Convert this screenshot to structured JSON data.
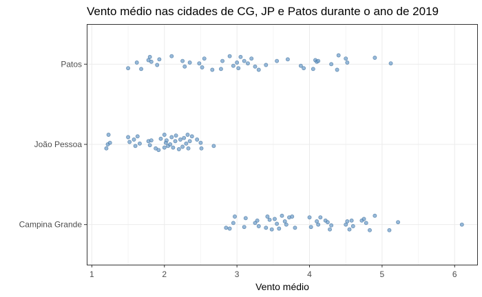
{
  "chart_data": {
    "type": "scatter",
    "title": "Vento médio nas cidades de CG, JP e Patos durante o ano de 2019",
    "xlabel": "Vento médio",
    "ylabel": "",
    "xlim": [
      0.93,
      6.32
    ],
    "x_ticks": [
      1,
      2,
      3,
      4,
      5,
      6
    ],
    "categories": [
      "Campina Grande",
      "João Pessoa",
      "Patos"
    ],
    "grid": true,
    "point_color": "#6f9ecb",
    "series": [
      {
        "category": "Patos",
        "points": [
          {
            "x": 1.5,
            "j": -0.05
          },
          {
            "x": 1.62,
            "j": 0.02
          },
          {
            "x": 1.68,
            "j": -0.06
          },
          {
            "x": 1.78,
            "j": 0.05
          },
          {
            "x": 1.8,
            "j": 0.09
          },
          {
            "x": 1.82,
            "j": 0.03
          },
          {
            "x": 1.9,
            "j": -0.01
          },
          {
            "x": 1.93,
            "j": 0.06
          },
          {
            "x": 2.1,
            "j": 0.1
          },
          {
            "x": 2.25,
            "j": 0.04
          },
          {
            "x": 2.28,
            "j": -0.03
          },
          {
            "x": 2.35,
            "j": 0.02
          },
          {
            "x": 2.48,
            "j": 0.01
          },
          {
            "x": 2.52,
            "j": -0.04
          },
          {
            "x": 2.55,
            "j": 0.07
          },
          {
            "x": 2.66,
            "j": -0.07
          },
          {
            "x": 2.78,
            "j": -0.06
          },
          {
            "x": 2.8,
            "j": 0.04
          },
          {
            "x": 2.9,
            "j": 0.1
          },
          {
            "x": 2.95,
            "j": -0.02
          },
          {
            "x": 3.0,
            "j": 0.02
          },
          {
            "x": 3.02,
            "j": -0.05
          },
          {
            "x": 3.05,
            "j": 0.09
          },
          {
            "x": 3.1,
            "j": 0.04
          },
          {
            "x": 3.15,
            "j": 0.01
          },
          {
            "x": 3.2,
            "j": 0.07
          },
          {
            "x": 3.25,
            "j": -0.03
          },
          {
            "x": 3.3,
            "j": -0.07
          },
          {
            "x": 3.4,
            "j": -0.01
          },
          {
            "x": 3.55,
            "j": 0.04
          },
          {
            "x": 3.7,
            "j": 0.06
          },
          {
            "x": 3.88,
            "j": -0.02
          },
          {
            "x": 3.92,
            "j": -0.05
          },
          {
            "x": 4.05,
            "j": -0.06
          },
          {
            "x": 4.08,
            "j": 0.05
          },
          {
            "x": 4.1,
            "j": 0.03
          },
          {
            "x": 4.12,
            "j": 0.04
          },
          {
            "x": 4.3,
            "j": 0.0
          },
          {
            "x": 4.38,
            "j": -0.07
          },
          {
            "x": 4.4,
            "j": 0.11
          },
          {
            "x": 4.5,
            "j": 0.07
          },
          {
            "x": 4.52,
            "j": 0.02
          },
          {
            "x": 4.9,
            "j": 0.08
          },
          {
            "x": 5.12,
            "j": 0.01
          }
        ]
      },
      {
        "category": "João Pessoa",
        "points": [
          {
            "x": 1.2,
            "j": -0.05
          },
          {
            "x": 1.22,
            "j": 0.0
          },
          {
            "x": 1.23,
            "j": 0.12
          },
          {
            "x": 1.25,
            "j": 0.02
          },
          {
            "x": 1.5,
            "j": 0.09
          },
          {
            "x": 1.52,
            "j": 0.03
          },
          {
            "x": 1.58,
            "j": 0.06
          },
          {
            "x": 1.6,
            "j": -0.02
          },
          {
            "x": 1.63,
            "j": 0.1
          },
          {
            "x": 1.66,
            "j": 0.01
          },
          {
            "x": 1.78,
            "j": 0.04
          },
          {
            "x": 1.8,
            "j": -0.01
          },
          {
            "x": 1.82,
            "j": 0.05
          },
          {
            "x": 1.88,
            "j": -0.05
          },
          {
            "x": 1.92,
            "j": -0.07
          },
          {
            "x": 1.95,
            "j": 0.07
          },
          {
            "x": 2.0,
            "j": 0.12
          },
          {
            "x": 2.0,
            "j": -0.04
          },
          {
            "x": 2.02,
            "j": 0.02
          },
          {
            "x": 2.03,
            "j": 0.05
          },
          {
            "x": 2.05,
            "j": -0.02
          },
          {
            "x": 2.08,
            "j": 0.0
          },
          {
            "x": 2.1,
            "j": 0.09
          },
          {
            "x": 2.12,
            "j": -0.04
          },
          {
            "x": 2.15,
            "j": 0.04
          },
          {
            "x": 2.16,
            "j": 0.11
          },
          {
            "x": 2.2,
            "j": -0.06
          },
          {
            "x": 2.22,
            "j": 0.06
          },
          {
            "x": 2.25,
            "j": -0.03
          },
          {
            "x": 2.27,
            "j": 0.08
          },
          {
            "x": 2.3,
            "j": 0.01
          },
          {
            "x": 2.32,
            "j": 0.12
          },
          {
            "x": 2.33,
            "j": -0.05
          },
          {
            "x": 2.35,
            "j": 0.04
          },
          {
            "x": 2.38,
            "j": 0.1
          },
          {
            "x": 2.45,
            "j": 0.06
          },
          {
            "x": 2.5,
            "j": 0.02
          },
          {
            "x": 2.51,
            "j": -0.05
          },
          {
            "x": 2.68,
            "j": -0.02
          }
        ]
      },
      {
        "category": "Campina Grande",
        "points": [
          {
            "x": 2.85,
            "j": -0.04
          },
          {
            "x": 2.9,
            "j": -0.05
          },
          {
            "x": 2.95,
            "j": 0.02
          },
          {
            "x": 2.97,
            "j": 0.1
          },
          {
            "x": 3.1,
            "j": -0.03
          },
          {
            "x": 3.12,
            "j": 0.08
          },
          {
            "x": 3.25,
            "j": 0.02
          },
          {
            "x": 3.28,
            "j": 0.05
          },
          {
            "x": 3.3,
            "j": -0.02
          },
          {
            "x": 3.4,
            "j": -0.04
          },
          {
            "x": 3.42,
            "j": 0.1
          },
          {
            "x": 3.45,
            "j": 0.06
          },
          {
            "x": 3.48,
            "j": -0.06
          },
          {
            "x": 3.52,
            "j": 0.07
          },
          {
            "x": 3.55,
            "j": 0.01
          },
          {
            "x": 3.58,
            "j": -0.05
          },
          {
            "x": 3.62,
            "j": 0.11
          },
          {
            "x": 3.66,
            "j": 0.04
          },
          {
            "x": 3.68,
            "j": 0.0
          },
          {
            "x": 3.72,
            "j": 0.09
          },
          {
            "x": 3.76,
            "j": 0.1
          },
          {
            "x": 3.8,
            "j": -0.04
          },
          {
            "x": 4.0,
            "j": 0.09
          },
          {
            "x": 4.02,
            "j": -0.03
          },
          {
            "x": 4.1,
            "j": 0.04
          },
          {
            "x": 4.12,
            "j": 0.0
          },
          {
            "x": 4.15,
            "j": 0.09
          },
          {
            "x": 4.22,
            "j": 0.05
          },
          {
            "x": 4.25,
            "j": 0.03
          },
          {
            "x": 4.28,
            "j": -0.06
          },
          {
            "x": 4.3,
            "j": -0.01
          },
          {
            "x": 4.5,
            "j": 0.0
          },
          {
            "x": 4.52,
            "j": 0.04
          },
          {
            "x": 4.55,
            "j": -0.06
          },
          {
            "x": 4.58,
            "j": 0.05
          },
          {
            "x": 4.6,
            "j": -0.02
          },
          {
            "x": 4.72,
            "j": 0.05
          },
          {
            "x": 4.75,
            "j": 0.07
          },
          {
            "x": 4.78,
            "j": 0.02
          },
          {
            "x": 4.83,
            "j": -0.07
          },
          {
            "x": 4.9,
            "j": 0.11
          },
          {
            "x": 5.1,
            "j": -0.07
          },
          {
            "x": 5.22,
            "j": 0.03
          },
          {
            "x": 6.1,
            "j": 0.0
          }
        ]
      }
    ]
  }
}
